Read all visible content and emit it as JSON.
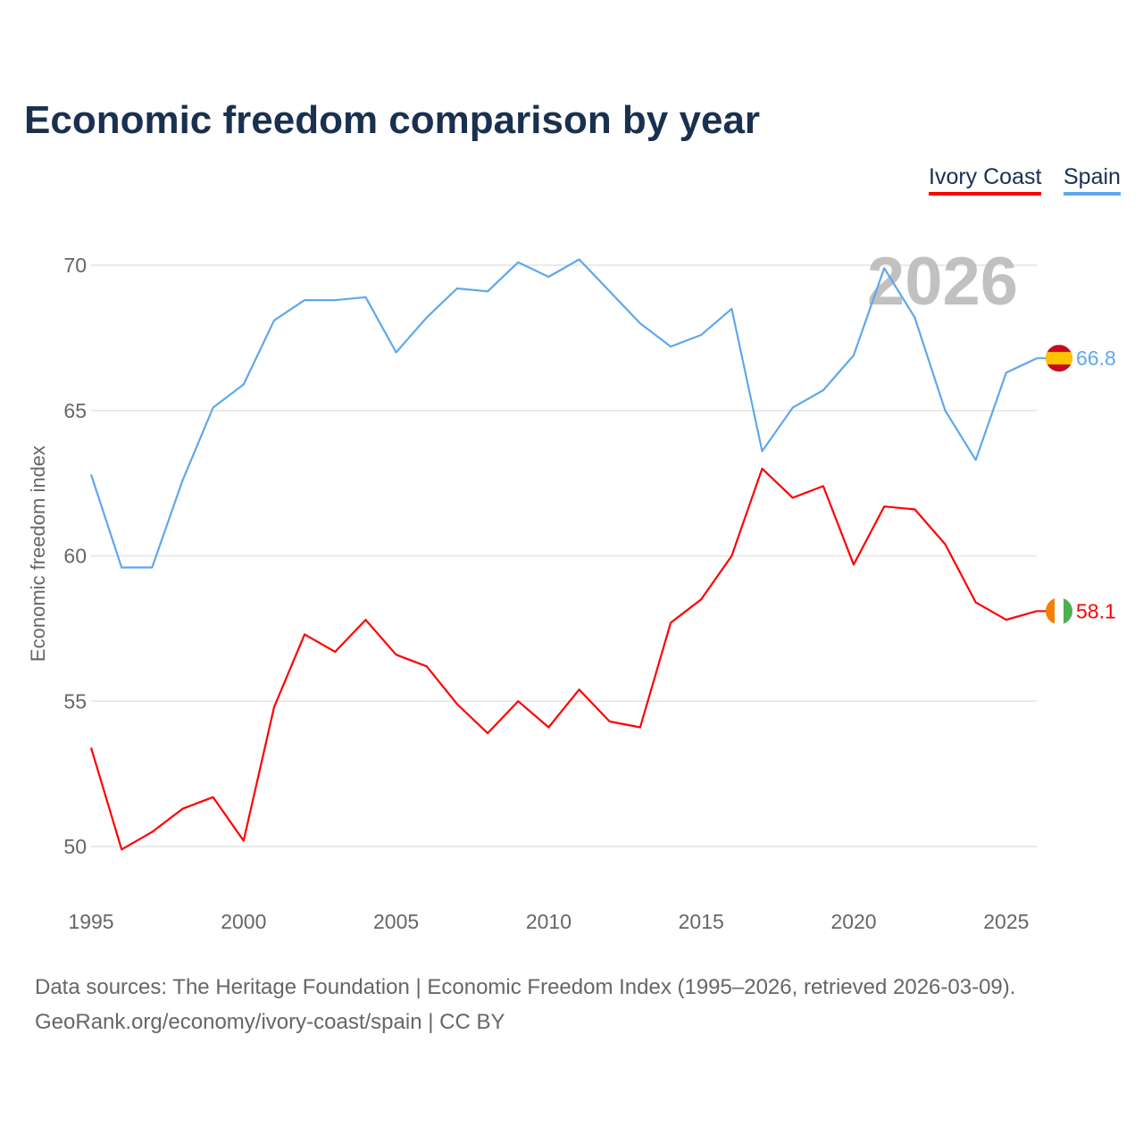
{
  "chart_data": {
    "type": "line",
    "title": "Economic freedom comparison by year",
    "ylabel": "Economic freedom index",
    "xlabel": "",
    "ylim": [
      50,
      70
    ],
    "xlim": [
      1995,
      2026
    ],
    "yticks": [
      50,
      55,
      60,
      65,
      70
    ],
    "xticks": [
      1995,
      2000,
      2005,
      2010,
      2015,
      2020,
      2025
    ],
    "grid": true,
    "legend_placement": "top-right",
    "year_watermark": "2026",
    "x": [
      1995,
      1996,
      1997,
      1998,
      1999,
      2000,
      2001,
      2002,
      2003,
      2004,
      2005,
      2006,
      2007,
      2008,
      2009,
      2010,
      2011,
      2012,
      2013,
      2014,
      2015,
      2016,
      2017,
      2018,
      2019,
      2020,
      2021,
      2022,
      2023,
      2024,
      2025,
      2026
    ],
    "series": [
      {
        "name": "Ivory Coast",
        "color": "#ff0000",
        "end_label": "58.1",
        "values": [
          53.4,
          49.9,
          50.5,
          51.3,
          51.7,
          50.2,
          54.8,
          57.3,
          56.7,
          57.8,
          56.6,
          56.2,
          54.9,
          53.9,
          55.0,
          54.1,
          55.4,
          54.3,
          54.1,
          57.7,
          58.5,
          60.0,
          63.0,
          62.0,
          62.4,
          59.7,
          61.7,
          61.6,
          60.4,
          58.4,
          57.8,
          58.1
        ]
      },
      {
        "name": "Spain",
        "color": "#5ea8ec",
        "end_label": "66.8",
        "values": [
          62.8,
          59.6,
          59.6,
          62.6,
          65.1,
          65.9,
          68.1,
          68.8,
          68.8,
          68.9,
          67.0,
          68.2,
          69.2,
          69.1,
          70.1,
          69.6,
          70.2,
          69.1,
          68.0,
          67.2,
          67.6,
          68.5,
          63.6,
          65.1,
          65.7,
          66.9,
          69.9,
          68.2,
          65.0,
          63.3,
          66.3,
          66.8
        ]
      }
    ]
  },
  "footer": {
    "line1": "Data sources: The Heritage Foundation | Economic Freedom Index (1995–2026, retrieved 2026-03-09).",
    "line2": "GeoRank.org/economy/ivory-coast/spain | CC BY"
  }
}
